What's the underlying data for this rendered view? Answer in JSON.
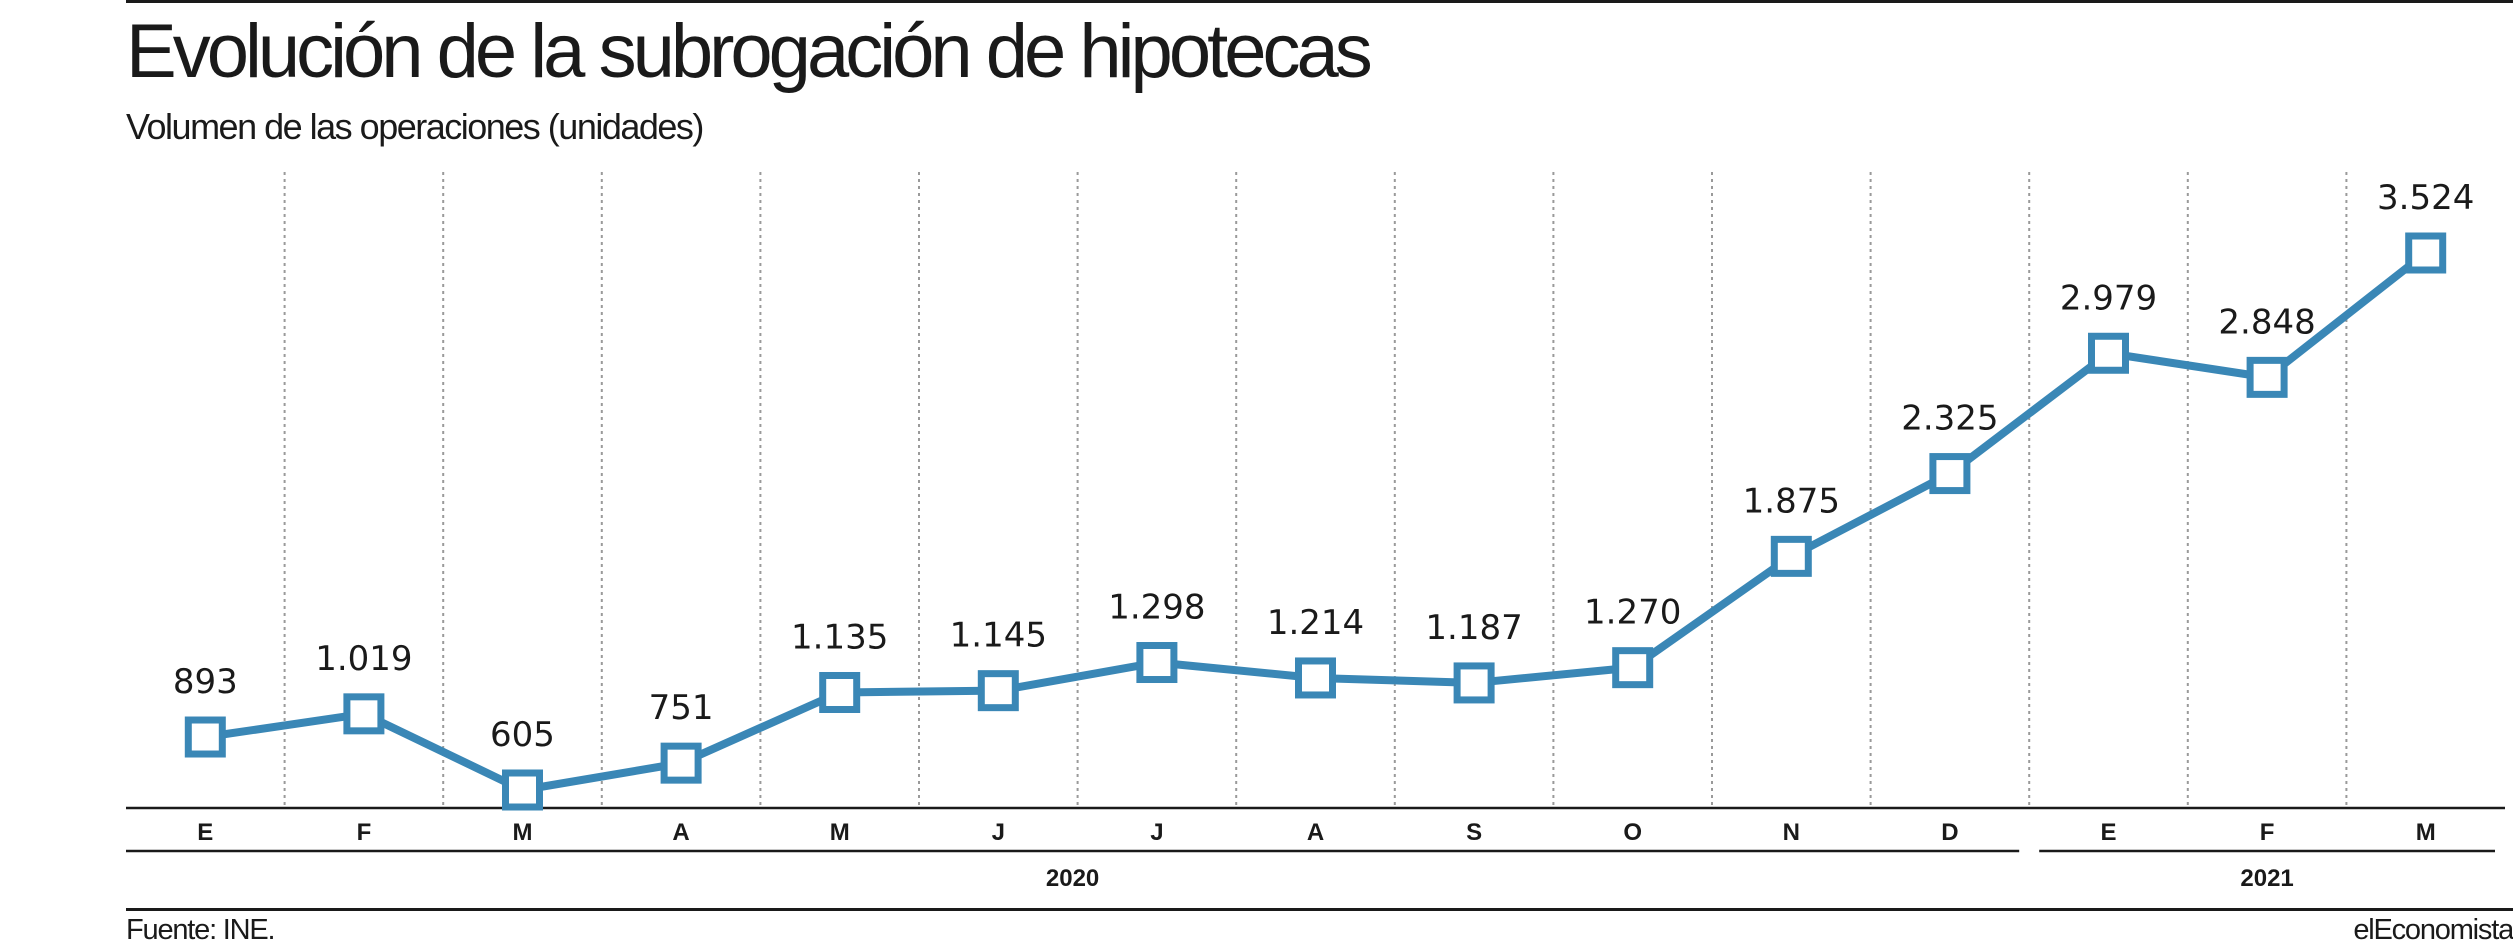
{
  "title": "Evolución de la subrogación de hipotecas",
  "subtitle": "Volumen de las operaciones (unidades)",
  "source": "Fuente: INE.",
  "brand": "elEconomista",
  "colors": {
    "line": "#3a87b6",
    "text": "#1a1a1a",
    "grid": "#9a9a9a"
  },
  "chart_data": {
    "type": "line",
    "categories": [
      "E",
      "F",
      "M",
      "A",
      "M",
      "J",
      "J",
      "A",
      "S",
      "O",
      "N",
      "D",
      "E",
      "F",
      "M"
    ],
    "year_groups": [
      {
        "label": "2020",
        "from": 0,
        "to": 11
      },
      {
        "label": "2021",
        "from": 12,
        "to": 14
      }
    ],
    "series": [
      {
        "values": [
          893,
          1019,
          605,
          751,
          1135,
          1145,
          1298,
          1214,
          1187,
          1270,
          1875,
          2325,
          2979,
          2848,
          3524
        ],
        "data_labels": [
          "893",
          "1.019",
          "605",
          "751",
          "1.135",
          "1.145",
          "1.298",
          "1.214",
          "1.187",
          "1.270",
          "1.875",
          "2.325",
          "2.979",
          "2.848",
          "3.524"
        ]
      }
    ],
    "marker": "square",
    "grid": "vertical dotted",
    "legend": "none"
  }
}
